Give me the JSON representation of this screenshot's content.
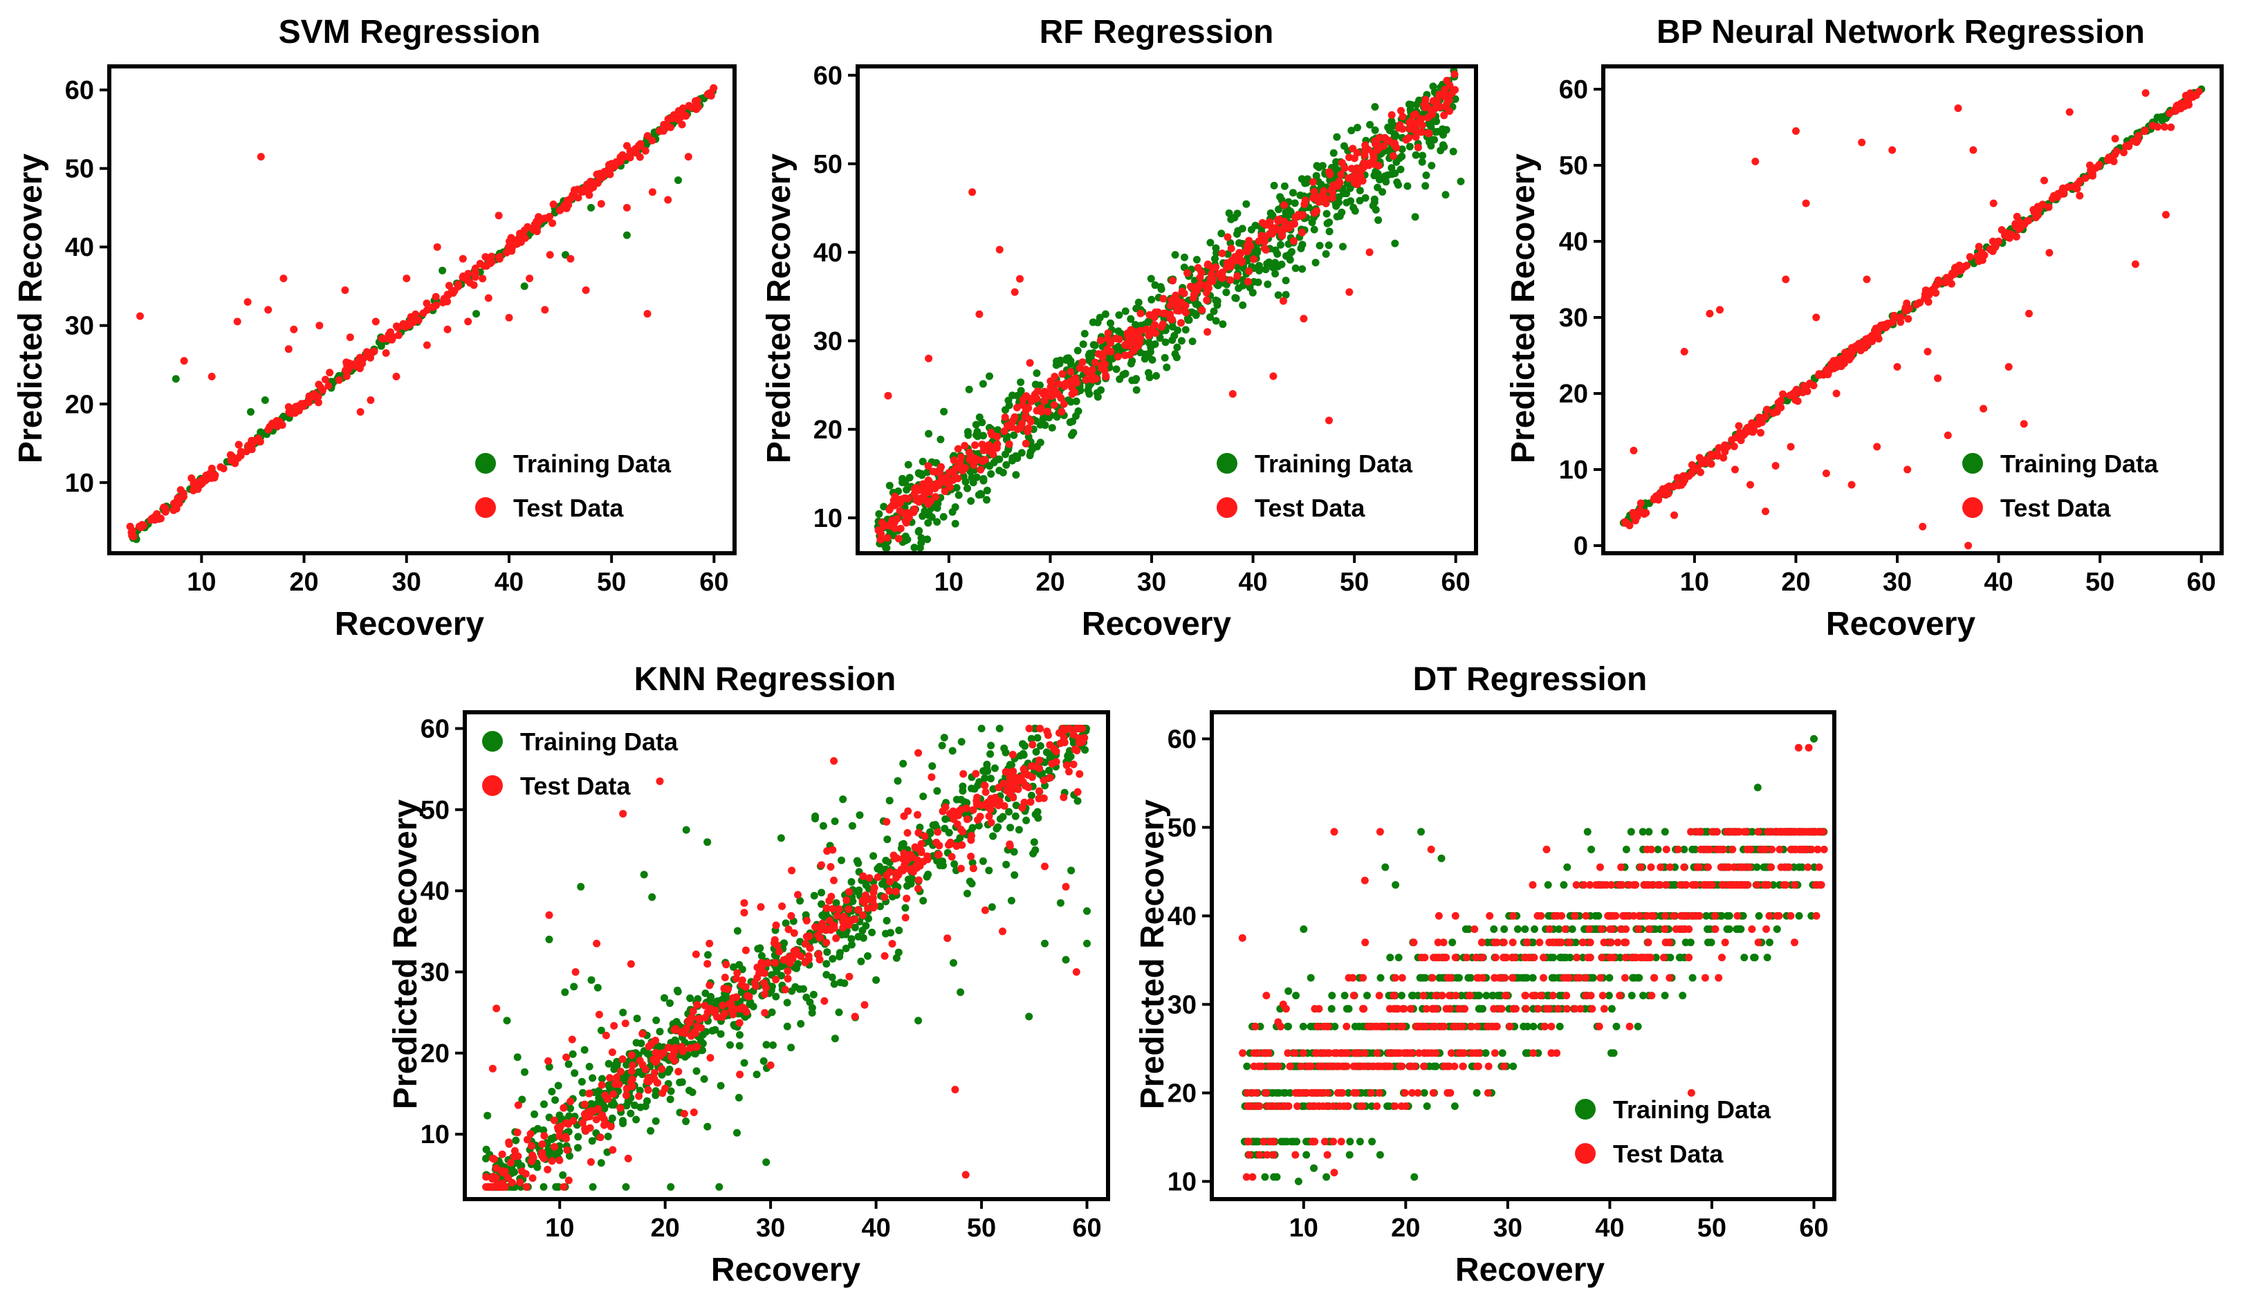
{
  "colors": {
    "train": "#0a7d0a",
    "test": "#ff1a1a"
  },
  "legend": {
    "train_label": "Training Data",
    "test_label": "Test Data"
  },
  "chart_data": [
    {
      "type": "scatter",
      "title": "SVM Regression",
      "xlabel": "Recovery",
      "ylabel": "Predicted Recovery",
      "xlim": [
        1,
        62
      ],
      "ylim": [
        1,
        63
      ],
      "xticks": [
        10,
        20,
        30,
        40,
        50,
        60
      ],
      "yticks": [
        10,
        20,
        30,
        40,
        50,
        60
      ],
      "legend_position": "bottom-right",
      "series": [
        {
          "name": "Training Data",
          "style": "identity",
          "points": [
            [
              7.5,
              23.2
            ],
            [
              16.2,
              20.5
            ],
            [
              14.8,
              19.0
            ],
            [
              33.5,
              37.0
            ],
            [
              36.8,
              31.5
            ],
            [
              51.5,
              41.5
            ],
            [
              45.5,
              39.0
            ],
            [
              41.5,
              35.0
            ],
            [
              56.5,
              48.5
            ],
            [
              27.5,
              28.5
            ],
            [
              48.0,
              45.0
            ]
          ]
        },
        {
          "name": "Test Data",
          "style": "identity",
          "points": [
            [
              4.0,
              31.2
            ],
            [
              8.3,
              25.5
            ],
            [
              15.8,
              51.5
            ],
            [
              11.0,
              23.5
            ],
            [
              13.5,
              30.5
            ],
            [
              14.5,
              33.0
            ],
            [
              16.5,
              32.0
            ],
            [
              18.0,
              36.0
            ],
            [
              19.0,
              29.5
            ],
            [
              21.5,
              30.0
            ],
            [
              22.5,
              24.0
            ],
            [
              24.5,
              28.5
            ],
            [
              25.5,
              19.0
            ],
            [
              26.5,
              20.5
            ],
            [
              28.0,
              26.5
            ],
            [
              29.0,
              23.5
            ],
            [
              32.0,
              27.5
            ],
            [
              34.0,
              29.5
            ],
            [
              36.0,
              30.5
            ],
            [
              38.0,
              33.5
            ],
            [
              39.0,
              44.0
            ],
            [
              40.0,
              31.0
            ],
            [
              42.0,
              36.0
            ],
            [
              43.5,
              32.0
            ],
            [
              46.0,
              38.5
            ],
            [
              47.5,
              34.5
            ],
            [
              49.0,
              45.5
            ],
            [
              53.5,
              31.5
            ],
            [
              54.0,
              47.0
            ],
            [
              55.5,
              46.0
            ],
            [
              57.5,
              51.5
            ],
            [
              30.0,
              36.0
            ],
            [
              33.0,
              40.0
            ],
            [
              24.0,
              34.5
            ],
            [
              18.5,
              27.0
            ],
            [
              20.5,
              21.0
            ],
            [
              44.0,
              39.0
            ],
            [
              51.5,
              45.0
            ],
            [
              27.0,
              30.5
            ],
            [
              35.5,
              38.5
            ]
          ]
        }
      ]
    },
    {
      "type": "scatter",
      "title": "RF Regression",
      "xlabel": "Recovery",
      "ylabel": "Predicted Recovery",
      "xlim": [
        1,
        62
      ],
      "ylim": [
        6,
        61
      ],
      "xticks": [
        10,
        20,
        30,
        40,
        50,
        60
      ],
      "yticks": [
        10,
        20,
        30,
        40,
        50,
        60
      ],
      "legend_position": "bottom-right",
      "series": [
        {
          "name": "Training Data",
          "style": "band",
          "points": [
            [
              3.0,
              9.0
            ],
            [
              4.5,
              8.0
            ],
            [
              5.0,
              13.0
            ],
            [
              6.0,
              16.0
            ],
            [
              8.0,
              19.5
            ],
            [
              9.5,
              22.0
            ],
            [
              12.0,
              24.5
            ],
            [
              14.0,
              26.0
            ],
            [
              57.0,
              47.5
            ],
            [
              59.0,
              46.5
            ],
            [
              60.5,
              48.0
            ],
            [
              56.0,
              44.0
            ],
            [
              58.5,
              51.5
            ],
            [
              54.0,
              41.0
            ]
          ]
        },
        {
          "name": "Test Data",
          "style": "band",
          "points": [
            [
              4.0,
              23.8
            ],
            [
              12.3,
              46.8
            ],
            [
              15.0,
              40.3
            ],
            [
              16.5,
              35.5
            ],
            [
              13.0,
              33.0
            ],
            [
              18.0,
              27.5
            ],
            [
              22.0,
              26.5
            ],
            [
              38.0,
              24.0
            ],
            [
              42.0,
              26.0
            ],
            [
              47.5,
              21.0
            ],
            [
              45.0,
              32.5
            ],
            [
              49.5,
              35.5
            ],
            [
              51.5,
              40.0
            ],
            [
              8.0,
              28.0
            ],
            [
              17.0,
              37.0
            ],
            [
              10.5,
              16.5
            ],
            [
              35.5,
              31.0
            ],
            [
              43.0,
              34.5
            ]
          ]
        }
      ]
    },
    {
      "type": "scatter",
      "title": "BP Neural Network Regression",
      "xlabel": "Recovery",
      "ylabel": "Predicted Recovery",
      "xlim": [
        1,
        62
      ],
      "ylim": [
        -1,
        63
      ],
      "xticks": [
        10,
        20,
        30,
        40,
        50,
        60
      ],
      "yticks": [
        0,
        10,
        20,
        30,
        40,
        50,
        60
      ],
      "legend_position": "bottom-right",
      "series": [
        {
          "name": "Training Data",
          "style": "identity",
          "points": [
            [
              3.0,
              3.0
            ],
            [
              5.0,
              5.0
            ],
            [
              58.5,
              58.5
            ],
            [
              60.0,
              60.0
            ]
          ]
        },
        {
          "name": "Test Data",
          "style": "identity",
          "points": [
            [
              4.0,
              12.5
            ],
            [
              8.0,
              4.0
            ],
            [
              9.0,
              25.5
            ],
            [
              11.5,
              30.5
            ],
            [
              12.5,
              31.0
            ],
            [
              14.0,
              10.0
            ],
            [
              15.5,
              8.0
            ],
            [
              16.0,
              50.5
            ],
            [
              17.0,
              4.5
            ],
            [
              18.0,
              10.5
            ],
            [
              19.5,
              13.0
            ],
            [
              20.0,
              54.5
            ],
            [
              21.0,
              45.0
            ],
            [
              22.0,
              30.0
            ],
            [
              23.0,
              9.5
            ],
            [
              24.0,
              20.0
            ],
            [
              25.5,
              8.0
            ],
            [
              26.5,
              53.0
            ],
            [
              28.0,
              13.0
            ],
            [
              29.5,
              52.0
            ],
            [
              30.0,
              23.5
            ],
            [
              31.0,
              10.0
            ],
            [
              32.5,
              2.5
            ],
            [
              33.0,
              25.5
            ],
            [
              34.0,
              22.0
            ],
            [
              35.0,
              14.5
            ],
            [
              36.0,
              57.5
            ],
            [
              37.0,
              0.0
            ],
            [
              37.5,
              52.0
            ],
            [
              38.5,
              18.0
            ],
            [
              40.0,
              40.0
            ],
            [
              41.0,
              23.5
            ],
            [
              42.5,
              16.0
            ],
            [
              43.0,
              30.5
            ],
            [
              45.0,
              38.5
            ],
            [
              47.0,
              57.0
            ],
            [
              48.0,
              46.0
            ],
            [
              49.0,
              50.0
            ],
            [
              51.5,
              53.5
            ],
            [
              53.5,
              37.0
            ],
            [
              54.5,
              59.5
            ],
            [
              56.5,
              43.5
            ],
            [
              57.0,
              55.0
            ],
            [
              27.0,
              35.0
            ],
            [
              19.0,
              35.0
            ],
            [
              39.5,
              45.0
            ],
            [
              44.5,
              48.0
            ]
          ]
        }
      ]
    },
    {
      "type": "scatter",
      "title": "KNN Regression",
      "xlabel": "Recovery",
      "ylabel": "Predicted Recovery",
      "xlim": [
        1,
        62
      ],
      "ylim": [
        2,
        62
      ],
      "xticks": [
        10,
        20,
        30,
        40,
        50,
        60
      ],
      "yticks": [
        10,
        20,
        30,
        40,
        50,
        60
      ],
      "legend_position": "top-left",
      "series": [
        {
          "name": "Training Data",
          "style": "cloud",
          "points": [
            [
              3.0,
              7.0
            ],
            [
              4.0,
              3.5
            ],
            [
              5.0,
              24.0
            ],
            [
              6.0,
              19.5
            ],
            [
              9.0,
              34.0
            ],
            [
              10.5,
              27.5
            ],
            [
              12.0,
              40.5
            ],
            [
              13.0,
              29.0
            ],
            [
              16.0,
              25.0
            ],
            [
              18.0,
              42.0
            ],
            [
              22.0,
              47.5
            ],
            [
              24.0,
              46.0
            ],
            [
              27.0,
              14.5
            ],
            [
              31.0,
              46.5
            ],
            [
              35.0,
              48.0
            ],
            [
              40.0,
              29.0
            ],
            [
              44.0,
              24.0
            ],
            [
              48.0,
              27.5
            ],
            [
              51.0,
              38.0
            ],
            [
              54.5,
              24.5
            ],
            [
              56.0,
              33.5
            ],
            [
              57.5,
              38.5
            ],
            [
              60.0,
              37.5
            ],
            [
              58.0,
              31.5
            ],
            [
              60.0,
              33.5
            ],
            [
              58.5,
              42.5
            ],
            [
              55.0,
              46.0
            ]
          ]
        },
        {
          "name": "Test Data",
          "style": "cloud",
          "points": [
            [
              4.0,
              25.5
            ],
            [
              9.0,
              37.0
            ],
            [
              11.5,
              30.0
            ],
            [
              13.5,
              33.5
            ],
            [
              16.0,
              49.5
            ],
            [
              16.5,
              7.0
            ],
            [
              19.5,
              53.5
            ],
            [
              24.0,
              31.0
            ],
            [
              27.5,
              38.5
            ],
            [
              32.0,
              42.5
            ],
            [
              47.5,
              15.5
            ],
            [
              48.5,
              5.0
            ],
            [
              52.0,
              35.0
            ],
            [
              56.0,
              43.0
            ],
            [
              58.0,
              40.5
            ],
            [
              59.0,
              30.0
            ],
            [
              38.0,
              24.5
            ],
            [
              41.0,
              48.5
            ],
            [
              36.0,
              56.0
            ],
            [
              44.0,
              57.0
            ],
            [
              30.0,
              18.5
            ],
            [
              21.0,
              23.0
            ]
          ]
        }
      ]
    },
    {
      "type": "scatter",
      "title": "DT Regression",
      "xlabel": "Recovery",
      "ylabel": "Predicted Recovery",
      "xlim": [
        1,
        62
      ],
      "ylim": [
        8,
        63
      ],
      "xticks": [
        10,
        20,
        30,
        40,
        50,
        60
      ],
      "yticks": [
        10,
        20,
        30,
        40,
        50,
        60
      ],
      "legend_position": "bottom-right",
      "levels": [
        10.5,
        13.0,
        14.5,
        18.5,
        20.0,
        23.0,
        24.5,
        27.5,
        29.5,
        31.0,
        33.0,
        35.3,
        37.0,
        38.5,
        40.0,
        43.5,
        45.5,
        47.5,
        49.5
      ],
      "series": [
        {
          "name": "Training Data",
          "style": "steps",
          "points": [
            [
              9.5,
              10.0
            ],
            [
              11.0,
              11.5
            ],
            [
              14.5,
              13.0
            ],
            [
              17.5,
              13.0
            ],
            [
              54.5,
              54.5
            ],
            [
              60.0,
              60.0
            ],
            [
              21.5,
              49.5
            ],
            [
              18.0,
              45.5
            ],
            [
              23.5,
              46.5
            ],
            [
              19.0,
              43.5
            ],
            [
              10.0,
              38.5
            ],
            [
              8.5,
              31.5
            ],
            [
              5.5,
              20.0
            ]
          ]
        },
        {
          "name": "Test Data",
          "style": "steps",
          "points": [
            [
              4.0,
              37.5
            ],
            [
              13.0,
              49.5
            ],
            [
              16.0,
              44.0
            ],
            [
              17.5,
              49.5
            ],
            [
              22.5,
              47.5
            ],
            [
              8.0,
              30.0
            ],
            [
              7.5,
              28.0
            ],
            [
              5.0,
              20.0
            ],
            [
              13.0,
              11.0
            ],
            [
              58.5,
              59.0
            ],
            [
              59.5,
              59.0
            ],
            [
              48.0,
              20.0
            ]
          ]
        }
      ]
    }
  ]
}
